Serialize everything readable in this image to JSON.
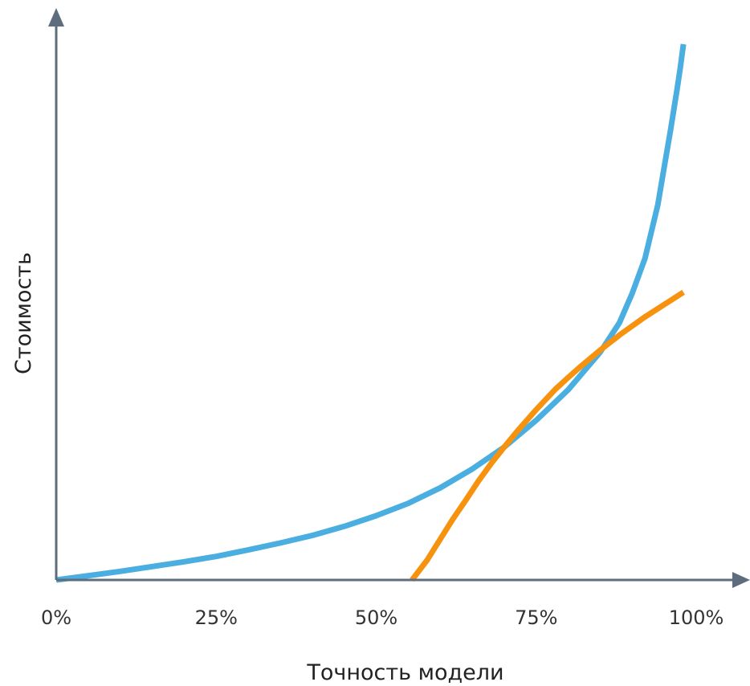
{
  "chart_data": {
    "type": "line",
    "title": "",
    "xlabel": "Точность модели",
    "ylabel": "Стоимость",
    "x_ticks": [
      {
        "value": 0,
        "label": "0%"
      },
      {
        "value": 25,
        "label": "25%"
      },
      {
        "value": 50,
        "label": "50%"
      },
      {
        "value": 75,
        "label": "75%"
      },
      {
        "value": 100,
        "label": "100%"
      }
    ],
    "xlim": [
      0,
      100
    ],
    "ylim": [
      0,
      100
    ],
    "y_ticks_shown": false,
    "grid": false,
    "legend": "none",
    "series": [
      {
        "color": "#4aaee0",
        "x": [
          0,
          5,
          10,
          15,
          20,
          25,
          30,
          35,
          40,
          45,
          50,
          55,
          60,
          65,
          70,
          75,
          80,
          85,
          88,
          90,
          92,
          94,
          95,
          96,
          97,
          97.5,
          98
        ],
        "y": [
          0,
          0.8,
          1.6,
          2.5,
          3.4,
          4.4,
          5.6,
          6.9,
          8.3,
          10.0,
          12.0,
          14.3,
          17.2,
          20.7,
          24.8,
          29.8,
          35.5,
          42.5,
          48.0,
          53.5,
          60.0,
          70.0,
          77.0,
          84.0,
          91.5,
          95.5,
          100
        ]
      },
      {
        "color": "#f7920f",
        "x": [
          55.6,
          58,
          60,
          62,
          64,
          66,
          68,
          70,
          72,
          75,
          78,
          80,
          82,
          85,
          88,
          90,
          92,
          95,
          98
        ],
        "y": [
          0,
          3.8,
          7.6,
          11.4,
          14.9,
          18.5,
          21.8,
          24.8,
          27.7,
          31.8,
          35.6,
          37.8,
          39.9,
          42.9,
          45.7,
          47.4,
          49.1,
          51.4,
          53.7
        ]
      }
    ]
  }
}
